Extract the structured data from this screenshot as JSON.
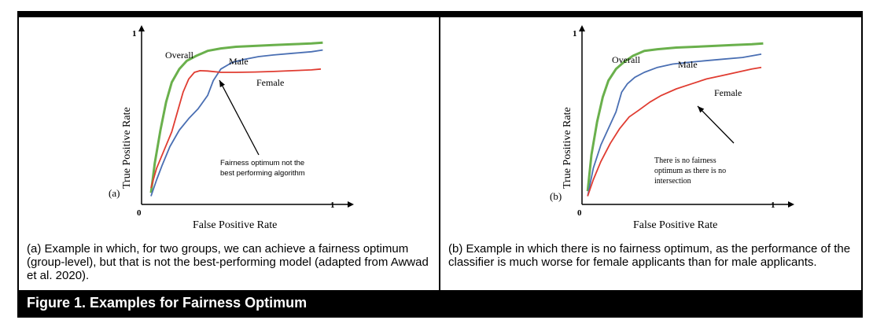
{
  "figure_title": "Figure 1.  Examples for Fairness Optimum",
  "panels": [
    {
      "caption": "(a)  Example in which, for two groups, we can achieve a fairness optimum (group-level), but that is not the best-performing model (adapted from Awwad et al. 2020).",
      "chart_data": {
        "type": "line",
        "panel_label": "(a)",
        "xlabel": "False Positive Rate",
        "ylabel": "True Positive Rate",
        "x_tick_labels": [
          "0",
          "1"
        ],
        "y_tick_labels": [
          "1"
        ],
        "xlim": [
          0,
          1
        ],
        "ylim": [
          0,
          1
        ],
        "grid": false,
        "series": [
          {
            "name": "Overall",
            "color": "#6ab04c",
            "x": [
              0.05,
              0.07,
              0.1,
              0.13,
              0.16,
              0.2,
              0.24,
              0.29,
              0.35,
              0.42,
              0.5,
              0.6,
              0.7,
              0.8,
              0.9,
              0.96
            ],
            "y": [
              0.07,
              0.25,
              0.45,
              0.62,
              0.74,
              0.82,
              0.87,
              0.9,
              0.93,
              0.945,
              0.955,
              0.96,
              0.965,
              0.97,
              0.975,
              0.98
            ]
          },
          {
            "name": "Male",
            "color": "#4a6fb3",
            "x": [
              0.05,
              0.08,
              0.11,
              0.15,
              0.2,
              0.25,
              0.3,
              0.35,
              0.38,
              0.42,
              0.48,
              0.55,
              0.62,
              0.7,
              0.8,
              0.9,
              0.96
            ],
            "y": [
              0.05,
              0.15,
              0.24,
              0.35,
              0.45,
              0.52,
              0.58,
              0.66,
              0.75,
              0.82,
              0.86,
              0.88,
              0.895,
              0.905,
              0.915,
              0.925,
              0.935
            ]
          },
          {
            "name": "Female",
            "color": "#e03c31",
            "x": [
              0.05,
              0.08,
              0.12,
              0.16,
              0.19,
              0.22,
              0.25,
              0.28,
              0.31,
              0.35,
              0.42,
              0.5,
              0.6,
              0.7,
              0.8,
              0.9,
              0.95
            ],
            "y": [
              0.1,
              0.22,
              0.33,
              0.44,
              0.56,
              0.68,
              0.76,
              0.8,
              0.81,
              0.808,
              0.8,
              0.8,
              0.802,
              0.805,
              0.81,
              0.815,
              0.82
            ]
          }
        ],
        "series_labels": [
          "Overall",
          "Male",
          "Female"
        ],
        "annotation": "Fairness optimum not the best performing algorithm"
      }
    },
    {
      "caption": "(b)  Example in which there is no fairness optimum, as the performance of the classifier is much worse for female applicants than for male applicants.",
      "chart_data": {
        "type": "line",
        "panel_label": "(b)",
        "xlabel": "False Positive Rate",
        "ylabel": "True Positive Rate",
        "x_tick_labels": [
          "0",
          "1"
        ],
        "y_tick_labels": [
          "1"
        ],
        "xlim": [
          0,
          1
        ],
        "ylim": [
          0,
          1
        ],
        "grid": false,
        "series": [
          {
            "name": "Overall",
            "color": "#6ab04c",
            "x": [
              0.03,
              0.05,
              0.08,
              0.11,
              0.14,
              0.18,
              0.22,
              0.27,
              0.33,
              0.4,
              0.5,
              0.6,
              0.7,
              0.8,
              0.9,
              0.96
            ],
            "y": [
              0.08,
              0.3,
              0.5,
              0.65,
              0.75,
              0.82,
              0.86,
              0.9,
              0.93,
              0.94,
              0.95,
              0.955,
              0.96,
              0.965,
              0.97,
              0.975
            ]
          },
          {
            "name": "Male",
            "color": "#4a6fb3",
            "x": [
              0.03,
              0.06,
              0.1,
              0.14,
              0.18,
              0.21,
              0.24,
              0.28,
              0.33,
              0.4,
              0.48,
              0.56,
              0.65,
              0.75,
              0.85,
              0.95
            ],
            "y": [
              0.05,
              0.22,
              0.36,
              0.46,
              0.56,
              0.68,
              0.73,
              0.77,
              0.8,
              0.83,
              0.85,
              0.86,
              0.87,
              0.88,
              0.89,
              0.91
            ]
          },
          {
            "name": "Female",
            "color": "#e03c31",
            "x": [
              0.03,
              0.06,
              0.1,
              0.15,
              0.2,
              0.25,
              0.3,
              0.36,
              0.42,
              0.5,
              0.58,
              0.66,
              0.74,
              0.82,
              0.9,
              0.95
            ],
            "y": [
              0.05,
              0.15,
              0.26,
              0.37,
              0.46,
              0.53,
              0.57,
              0.62,
              0.66,
              0.7,
              0.73,
              0.76,
              0.78,
              0.8,
              0.82,
              0.83
            ]
          }
        ],
        "series_labels": [
          "Overall",
          "Male",
          "Female"
        ],
        "annotation": "There is no fairness optimum as there is no intersection"
      }
    }
  ]
}
